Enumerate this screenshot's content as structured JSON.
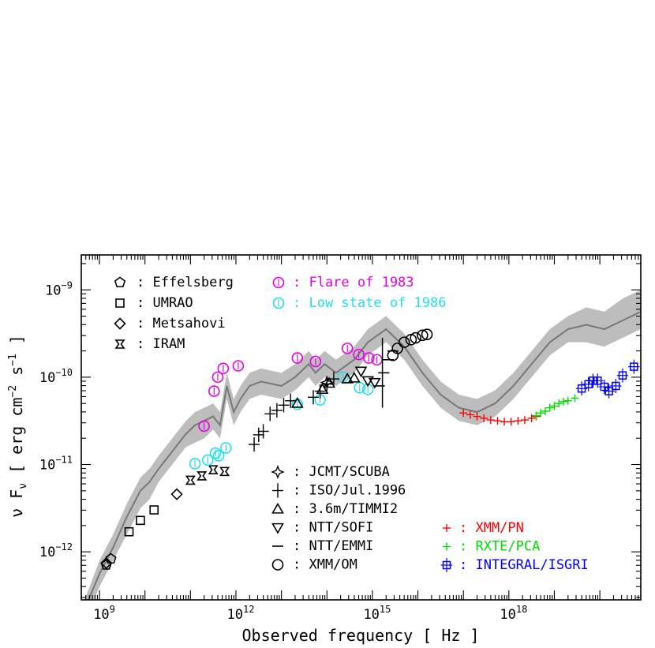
{
  "chart_data": {
    "type": "scatter",
    "xlabel": "Observed frequency [ Hz ]",
    "ylabel_parts": {
      "nu": "ν F",
      "sub": "ν",
      "open": " [ erg cm",
      "exp1": "−2",
      "mid": " s",
      "exp2": "−1",
      "close": " ]"
    },
    "x_scale": "log",
    "y_scale": "log",
    "xlim_log10": [
      8.6,
      20.9
    ],
    "ylim_log10": [
      -12.55,
      -8.6
    ],
    "x_ticks": [
      {
        "log": 9,
        "base": "10",
        "exp": "9"
      },
      {
        "log": 12,
        "base": "10",
        "exp": "12"
      },
      {
        "log": 15,
        "base": "10",
        "exp": "15"
      },
      {
        "log": 18,
        "base": "10",
        "exp": "18"
      }
    ],
    "y_ticks": [
      {
        "log": -9,
        "base": "10",
        "exp": "−9"
      },
      {
        "log": -10,
        "base": "10",
        "exp": "−10"
      },
      {
        "log": -11,
        "base": "10",
        "exp": "−11"
      },
      {
        "log": -12,
        "base": "10",
        "exp": "−12"
      }
    ],
    "model": {
      "color": "#777777",
      "band_color": "#bdbdbd",
      "points": [
        [
          8.6,
          -12.75
        ],
        [
          9.0,
          -12.25
        ],
        [
          9.3,
          -11.95
        ],
        [
          9.6,
          -11.6
        ],
        [
          9.9,
          -11.3
        ],
        [
          10.1,
          -11.2
        ],
        [
          10.3,
          -11.05
        ],
        [
          10.6,
          -10.85
        ],
        [
          10.9,
          -10.65
        ],
        [
          11.1,
          -10.55
        ],
        [
          11.3,
          -10.5
        ],
        [
          11.5,
          -10.45
        ],
        [
          11.65,
          -10.55
        ],
        [
          11.8,
          -10.1
        ],
        [
          11.95,
          -10.4
        ],
        [
          12.1,
          -10.25
        ],
        [
          12.3,
          -10.1
        ],
        [
          12.55,
          -10.05
        ],
        [
          13.0,
          -10.1
        ],
        [
          13.3,
          -10.0
        ],
        [
          13.6,
          -9.85
        ],
        [
          13.75,
          -9.95
        ],
        [
          13.95,
          -9.85
        ],
        [
          14.2,
          -9.95
        ],
        [
          14.6,
          -9.8
        ],
        [
          14.9,
          -9.6
        ],
        [
          15.3,
          -9.45
        ],
        [
          15.7,
          -9.65
        ],
        [
          16.1,
          -9.95
        ],
        [
          16.5,
          -10.2
        ],
        [
          16.9,
          -10.35
        ],
        [
          17.3,
          -10.4
        ],
        [
          17.7,
          -10.3
        ],
        [
          18.1,
          -10.1
        ],
        [
          18.5,
          -9.85
        ],
        [
          18.9,
          -9.6
        ],
        [
          19.3,
          -9.45
        ],
        [
          19.7,
          -9.4
        ],
        [
          20.1,
          -9.45
        ],
        [
          20.5,
          -9.35
        ],
        [
          20.9,
          -9.25
        ]
      ],
      "band": [
        [
          8.6,
          -12.9,
          -12.65
        ],
        [
          9.0,
          -12.4,
          -12.1
        ],
        [
          9.3,
          -12.1,
          -11.8
        ],
        [
          9.6,
          -11.8,
          -11.45
        ],
        [
          9.9,
          -11.5,
          -11.15
        ],
        [
          10.1,
          -11.4,
          -11.05
        ],
        [
          10.3,
          -11.2,
          -10.9
        ],
        [
          10.6,
          -11.0,
          -10.7
        ],
        [
          10.9,
          -10.8,
          -10.5
        ],
        [
          11.1,
          -10.75,
          -10.4
        ],
        [
          11.3,
          -10.7,
          -10.35
        ],
        [
          11.5,
          -10.6,
          -10.3
        ],
        [
          11.65,
          -10.7,
          -10.4
        ],
        [
          11.8,
          -10.25,
          -9.95
        ],
        [
          11.95,
          -10.55,
          -10.25
        ],
        [
          12.1,
          -10.4,
          -10.1
        ],
        [
          12.3,
          -10.25,
          -9.95
        ],
        [
          12.55,
          -10.2,
          -9.9
        ],
        [
          13.0,
          -10.25,
          -9.95
        ],
        [
          13.3,
          -10.15,
          -9.85
        ],
        [
          13.6,
          -10.0,
          -9.7
        ],
        [
          13.75,
          -10.1,
          -9.8
        ],
        [
          13.95,
          -10.0,
          -9.7
        ],
        [
          14.2,
          -10.1,
          -9.8
        ],
        [
          14.6,
          -9.95,
          -9.65
        ],
        [
          14.9,
          -9.75,
          -9.45
        ],
        [
          15.3,
          -9.6,
          -9.3
        ],
        [
          15.7,
          -9.8,
          -9.5
        ],
        [
          16.1,
          -10.1,
          -9.8
        ],
        [
          16.5,
          -10.35,
          -10.05
        ],
        [
          16.9,
          -10.5,
          -10.2
        ],
        [
          17.3,
          -10.55,
          -10.25
        ],
        [
          17.7,
          -10.45,
          -10.15
        ],
        [
          18.1,
          -10.25,
          -9.95
        ],
        [
          18.5,
          -10.0,
          -9.7
        ],
        [
          18.9,
          -9.75,
          -9.45
        ],
        [
          19.3,
          -9.6,
          -9.3
        ],
        [
          19.7,
          -9.6,
          -9.2
        ],
        [
          20.1,
          -9.65,
          -9.25
        ],
        [
          20.5,
          -9.55,
          -9.1
        ],
        [
          20.9,
          -9.45,
          -9.0
        ]
      ]
    },
    "series": [
      {
        "key": "effelsberg",
        "name": "Effelsberg",
        "marker": "pentagon",
        "color": "#000000",
        "points": [
          [
            9.15,
            -12.15
          ],
          [
            9.25,
            -12.08
          ]
        ]
      },
      {
        "key": "umrao",
        "name": "UMRAO",
        "marker": "square",
        "color": "#000000",
        "points": [
          [
            9.65,
            -11.77
          ],
          [
            9.9,
            -11.64
          ],
          [
            10.2,
            -11.52
          ]
        ]
      },
      {
        "key": "metsahovi",
        "name": "Metsahovi",
        "marker": "diamond",
        "color": "#000000",
        "points": [
          [
            9.15,
            -12.13
          ],
          [
            10.7,
            -11.34
          ]
        ]
      },
      {
        "key": "iram",
        "name": "IRAM",
        "marker": "bowtie",
        "color": "#000000",
        "points": [
          [
            11.0,
            -11.18
          ],
          [
            11.25,
            -11.13
          ],
          [
            11.5,
            -11.06
          ],
          [
            11.75,
            -11.08
          ]
        ]
      },
      {
        "key": "flare1983",
        "name": "Flare of 1983",
        "marker": "circle-bar",
        "color": "#e600e6",
        "points": [
          [
            11.3,
            -10.56
          ],
          [
            11.52,
            -10.16
          ],
          [
            11.6,
            -10.0
          ],
          [
            11.72,
            -9.9
          ],
          [
            12.05,
            -9.87
          ],
          [
            13.35,
            -9.78
          ],
          [
            13.75,
            -9.82
          ],
          [
            14.45,
            -9.67
          ],
          [
            14.7,
            -9.74
          ],
          [
            14.92,
            -9.78
          ],
          [
            15.1,
            -9.8
          ]
        ]
      },
      {
        "key": "low1986",
        "name": "Low state of 1986",
        "marker": "circle-bar",
        "color": "#22e0e8",
        "points": [
          [
            11.1,
            -10.99
          ],
          [
            11.38,
            -10.95
          ],
          [
            11.55,
            -10.87
          ],
          [
            11.62,
            -10.9
          ],
          [
            11.78,
            -10.81
          ],
          [
            13.35,
            -10.31
          ],
          [
            13.85,
            -10.26
          ],
          [
            14.35,
            -10.0
          ],
          [
            14.72,
            -10.12
          ],
          [
            14.9,
            -10.14
          ]
        ]
      },
      {
        "key": "jcmt",
        "name": "JCMT/SCUBA",
        "marker": "star4",
        "color": "#000000",
        "points": [
          [
            14.0,
            -10.06
          ]
        ]
      },
      {
        "key": "iso",
        "name": "ISO/Jul.1996",
        "marker": "plus",
        "color": "#000000",
        "points": [
          [
            12.4,
            -10.77
          ],
          [
            12.5,
            -10.66
          ],
          [
            12.6,
            -10.62
          ],
          [
            12.75,
            -10.42
          ],
          [
            12.9,
            -10.38
          ],
          [
            13.05,
            -10.32
          ],
          [
            13.2,
            -10.27
          ],
          [
            13.7,
            -10.23
          ],
          [
            13.85,
            -10.16
          ],
          [
            14.0,
            -10.08
          ],
          [
            14.15,
            -10.02
          ]
        ]
      },
      {
        "key": "timmi2",
        "name": "3.6m/TIMMI2",
        "marker": "triangle",
        "color": "#000000",
        "points": [
          [
            13.35,
            -10.3
          ],
          [
            13.9,
            -10.14
          ],
          [
            14.05,
            -10.07
          ],
          [
            14.45,
            -10.02
          ],
          [
            14.6,
            -10.01
          ]
        ]
      },
      {
        "key": "sofi",
        "name": "NTT/SOFI",
        "marker": "triangle-down",
        "color": "#000000",
        "points": [
          [
            14.75,
            -9.93
          ],
          [
            14.9,
            -10.04
          ],
          [
            15.05,
            -10.06
          ]
        ]
      },
      {
        "key": "emmi",
        "name": "NTT/EMMI",
        "marker": "dash",
        "color": "#000000",
        "points": [
          [
            15.15,
            -10.1
          ],
          [
            15.25,
            -9.95
          ],
          [
            15.35,
            -9.8
          ],
          [
            15.45,
            -9.7
          ]
        ]
      },
      {
        "key": "om",
        "name": "XMM/OM",
        "marker": "circle",
        "color": "#000000",
        "points": [
          [
            15.45,
            -9.75
          ],
          [
            15.55,
            -9.67
          ],
          [
            15.7,
            -9.6
          ],
          [
            15.85,
            -9.57
          ],
          [
            15.95,
            -9.55
          ],
          [
            16.1,
            -9.52
          ],
          [
            16.2,
            -9.51
          ]
        ]
      },
      {
        "key": "pn",
        "name": "XMM/PN",
        "marker": "plus-small",
        "color": "#ff0000",
        "points": [
          [
            17.0,
            -10.41
          ],
          [
            17.15,
            -10.43
          ],
          [
            17.3,
            -10.45
          ],
          [
            17.45,
            -10.47
          ],
          [
            17.6,
            -10.49
          ],
          [
            17.75,
            -10.5
          ],
          [
            17.9,
            -10.51
          ],
          [
            18.05,
            -10.51
          ],
          [
            18.2,
            -10.5
          ],
          [
            18.35,
            -10.49
          ],
          [
            18.5,
            -10.47
          ],
          [
            18.6,
            -10.45
          ]
        ]
      },
      {
        "key": "pca",
        "name": "RXTE/PCA",
        "marker": "plus-small",
        "color": "#00dd00",
        "points": [
          [
            18.6,
            -10.44
          ],
          [
            18.7,
            -10.41
          ],
          [
            18.8,
            -10.39
          ],
          [
            18.9,
            -10.35
          ],
          [
            19.0,
            -10.33
          ],
          [
            19.1,
            -10.3
          ],
          [
            19.2,
            -10.28
          ],
          [
            19.3,
            -10.27
          ],
          [
            19.45,
            -10.24
          ]
        ]
      },
      {
        "key": "isgri",
        "name": "INTEGRAL/ISGRI",
        "marker": "square-err",
        "color": "#0000ff",
        "points": [
          [
            19.6,
            -10.13
          ],
          [
            19.75,
            -10.08
          ],
          [
            19.85,
            -10.04
          ],
          [
            19.95,
            -10.04
          ],
          [
            20.1,
            -10.11
          ],
          [
            20.2,
            -10.16
          ],
          [
            20.35,
            -10.1
          ],
          [
            20.5,
            -9.98
          ],
          [
            20.75,
            -9.88
          ]
        ]
      }
    ],
    "legend_left_top": [
      "effelsberg",
      "umrao",
      "metsahovi",
      "iram"
    ],
    "legend_top_right": [
      "flare1983",
      "low1986"
    ],
    "legend_bottom_mid": [
      "jcmt",
      "iso",
      "timmi2",
      "sofi",
      "emmi",
      "om"
    ],
    "legend_bottom_right": [
      "pn",
      "pca",
      "isgri"
    ]
  }
}
